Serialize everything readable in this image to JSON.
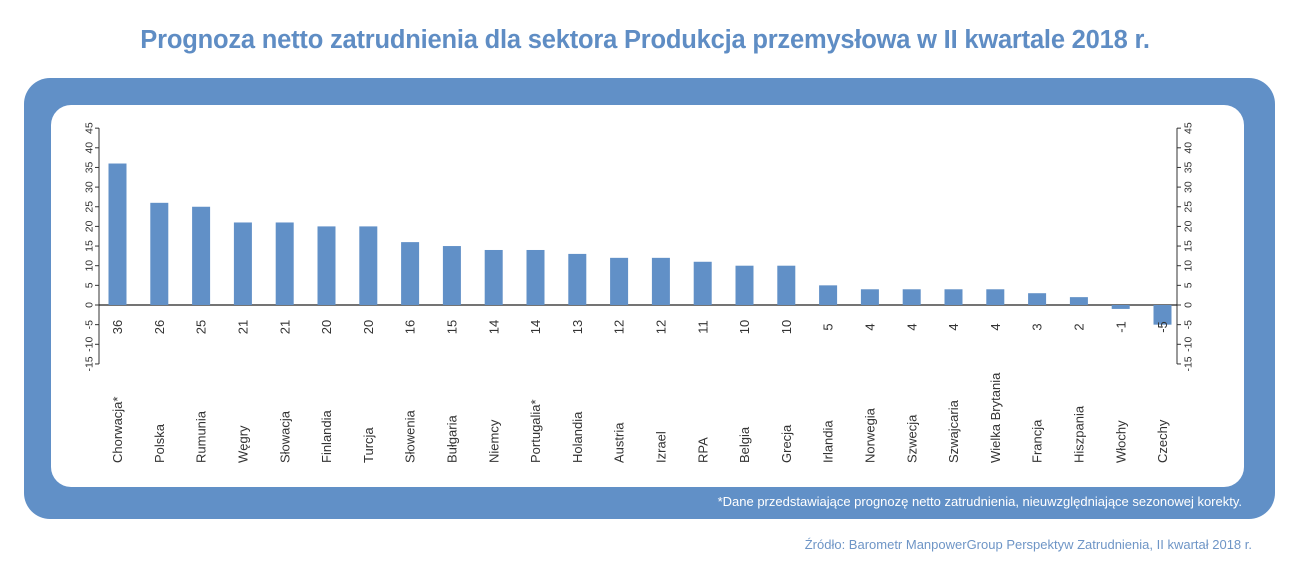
{
  "title": "Prognoza netto zatrudnienia dla sektora Produkcja przemysłowa w II kwartale 2018 r.",
  "footnote": "*Dane przedstawiające prognozę netto zatrudnienia, nieuwzględniające sezonowej korekty.",
  "source": "Źródło: Barometr ManpowerGroup Perspektyw Zatrudnienia, II kwartał 2018 r.",
  "colors": {
    "bar": "#6190c7",
    "frame": "#6190c7",
    "title": "#5f8dc4"
  },
  "chart_data": {
    "type": "bar",
    "title": "Prognoza netto zatrudnienia dla sektora Produkcja przemysłowa w II kwartale 2018 r.",
    "xlabel": "",
    "ylabel": "",
    "ylim": [
      -15,
      45
    ],
    "yticks": [
      -15,
      -10,
      -5,
      0,
      5,
      10,
      15,
      20,
      25,
      30,
      35,
      40,
      45
    ],
    "grid": false,
    "legend": null,
    "dual_y_axis": true,
    "categories": [
      "Chorwacja*",
      "Polska",
      "Rumunia",
      "Węgry",
      "Słowacja",
      "Finlandia",
      "Turcja",
      "Słowenia",
      "Bułgaria",
      "Niemcy",
      "Portugalia*",
      "Holandia",
      "Austria",
      "Izrael",
      "RPA",
      "Belgia",
      "Grecja",
      "Irlandia",
      "Norwegia",
      "Szwecja",
      "Szwajcaria",
      "Wielka Brytania",
      "Francja",
      "Hiszpania",
      "Włochy",
      "Czechy"
    ],
    "values": [
      36,
      26,
      25,
      21,
      21,
      20,
      20,
      16,
      15,
      14,
      14,
      13,
      12,
      12,
      11,
      10,
      10,
      5,
      4,
      4,
      4,
      4,
      3,
      2,
      -1,
      -5
    ],
    "value_labels": [
      "36",
      "26",
      "25",
      "21",
      "21",
      "20",
      "20",
      "16",
      "15",
      "14",
      "14",
      "13",
      "12",
      "12",
      "11",
      "10",
      "10",
      "5",
      "4",
      "4",
      "4",
      "4",
      "3",
      "2",
      "-1",
      "-5"
    ]
  }
}
